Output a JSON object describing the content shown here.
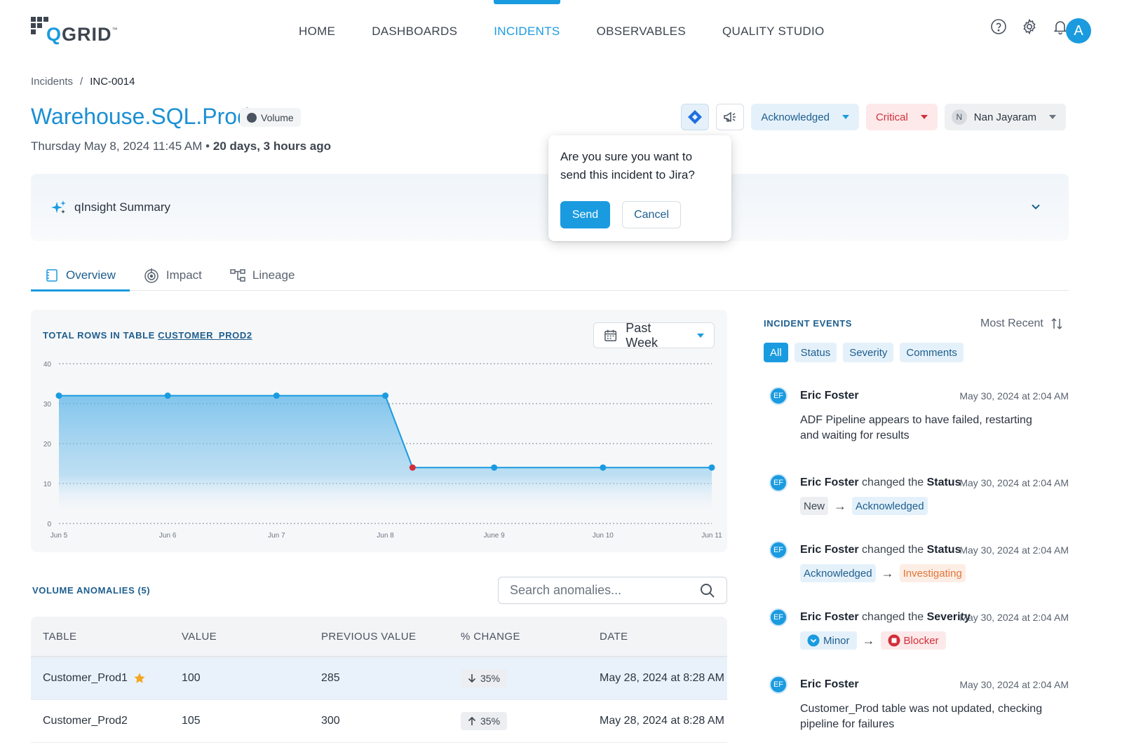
{
  "brand": {
    "logo_q": "Q",
    "logo_rest": "GRID",
    "logo_tm": "™"
  },
  "nav": {
    "items": [
      "HOME",
      "DASHBOARDS",
      "INCIDENTS",
      "OBSERVABLES",
      "QUALITY STUDIO"
    ],
    "active": "INCIDENTS"
  },
  "user": {
    "initial": "A"
  },
  "breadcrumb": {
    "root": "Incidents",
    "separator": "/",
    "current": "INC-0014"
  },
  "incident": {
    "title": "Warehouse.SQL.Prod",
    "type": "Volume",
    "date": "Thursday May 8, 2024 11:45 AM",
    "bullet": "•",
    "age": "20 days, 3 hours ago",
    "status": "Acknowledged",
    "severity": "Critical",
    "assignee": "Nan Jayaram",
    "assignee_initial": "N"
  },
  "qinsight": {
    "label": "qInsight Summary"
  },
  "popover": {
    "message": "Are you sure you want to send this incident to Jira?",
    "send": "Send",
    "cancel": "Cancel"
  },
  "tabs": [
    "Overview",
    "Impact",
    "Lineage"
  ],
  "chart": {
    "title_prefix": "TOTAL ROWS IN TABLE ",
    "title_table": "CUSTOMER_PROD2",
    "range": "Past Week"
  },
  "chart_data": {
    "type": "area",
    "title": "TOTAL ROWS IN TABLE CUSTOMER_PROD2",
    "categories": [
      "Jun 5",
      "Jun 6",
      "Jun 7",
      "Jun 8",
      "June 9",
      "Jun 10",
      "Jun 11"
    ],
    "x": [
      0,
      1,
      2,
      3,
      3.25,
      4,
      5,
      6
    ],
    "values": [
      32,
      32,
      32,
      32,
      14,
      14,
      14,
      14
    ],
    "anomaly_index": 4,
    "ylim": [
      0,
      40
    ],
    "yticks": [
      0,
      10,
      20,
      30,
      40
    ],
    "grid": true,
    "colors": {
      "line": "#1a9be0",
      "fill": "#7cc3ec",
      "anomaly": "#d22f3a"
    }
  },
  "anomalies": {
    "title": "VOLUME ANOMALIES (5)",
    "search_placeholder": "Search anomalies...",
    "columns": [
      "TABLE",
      "VALUE",
      "PREVIOUS VALUE",
      "% CHANGE",
      "DATE"
    ],
    "rows": [
      {
        "table": "Customer_Prod1",
        "value": "100",
        "previous": "285",
        "change": "35%",
        "direction": "down",
        "date": "May 28, 2024 at 8:28 AM",
        "starred": true
      },
      {
        "table": "Customer_Prod2",
        "value": "105",
        "previous": "300",
        "change": "35%",
        "direction": "up",
        "date": "May 28, 2024 at 8:28 AM",
        "starred": false
      }
    ]
  },
  "events": {
    "title": "INCIDENT EVENTS",
    "sort": "Most Recent",
    "filters": [
      "All",
      "Status",
      "Severity",
      "Comments"
    ],
    "active_filter": "All",
    "items": [
      {
        "initials": "EF",
        "user": "Eric Foster",
        "action": "",
        "field": "",
        "time": "May 30, 2024 at 2:04 AM",
        "text": "ADF Pipeline appears to have failed, restarting and waiting for results"
      },
      {
        "initials": "EF",
        "user": "Eric Foster",
        "action": " changed the ",
        "field": "Status",
        "time": "May 30, 2024 at 2:04 AM",
        "from": "New",
        "to": "Acknowledged"
      },
      {
        "initials": "EF",
        "user": "Eric Foster",
        "action": " changed the ",
        "field": "Status",
        "time": "May 30, 2024 at 2:04 AM",
        "from": "Acknowledged",
        "to": "Investigating"
      },
      {
        "initials": "EF",
        "user": "Eric Foster",
        "action": " changed the ",
        "field": "Severity",
        "time": "May 30, 2024 at 2:04 AM",
        "from": "Minor",
        "to": "Blocker"
      },
      {
        "initials": "EF",
        "user": "Eric Foster",
        "action": "",
        "field": "",
        "time": "May 30, 2024 at 2:04 AM",
        "text": "Customer_Prod table was not updated, checking pipeline for failures"
      }
    ]
  }
}
